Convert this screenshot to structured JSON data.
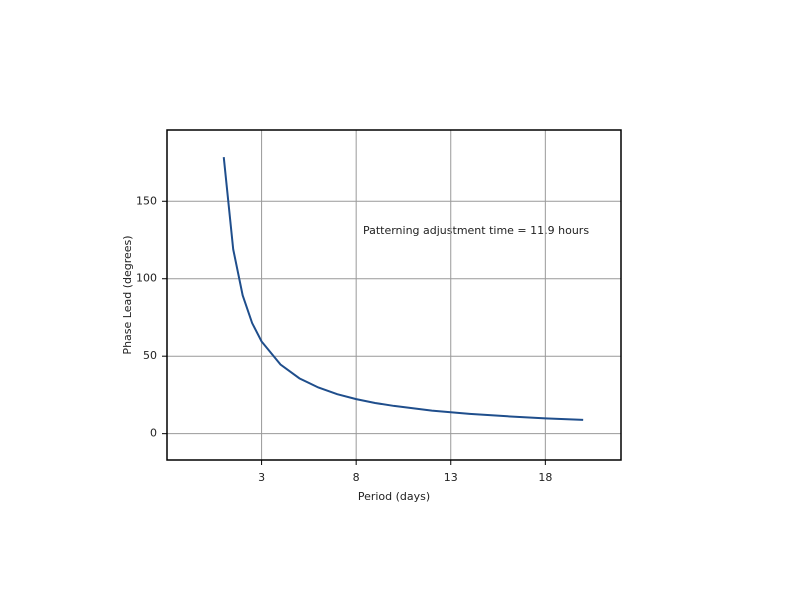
{
  "chart_data": {
    "type": "line",
    "xlabel": "Period (days)",
    "ylabel": "Phase Lead (degrees)",
    "annotation": "Patterning adjustment time = 11.9 hours",
    "x": [
      1,
      1.5,
      2,
      2.5,
      3,
      4,
      5,
      6,
      7,
      8,
      9,
      10,
      12,
      14,
      16,
      18,
      20
    ],
    "series": [
      {
        "name": "Phase lead",
        "color": "#1f4e8c",
        "values": [
          178.5,
          119,
          89.3,
          71.4,
          59.5,
          44.6,
          35.7,
          29.8,
          25.5,
          22.3,
          19.8,
          17.9,
          14.9,
          12.8,
          11.2,
          9.9,
          8.9
        ]
      }
    ],
    "xlim": [
      -2,
      22
    ],
    "ylim": [
      -17,
      196
    ],
    "xticks": [
      3,
      8,
      13,
      18
    ],
    "yticks": [
      0,
      50,
      100,
      150
    ],
    "grid": true
  }
}
